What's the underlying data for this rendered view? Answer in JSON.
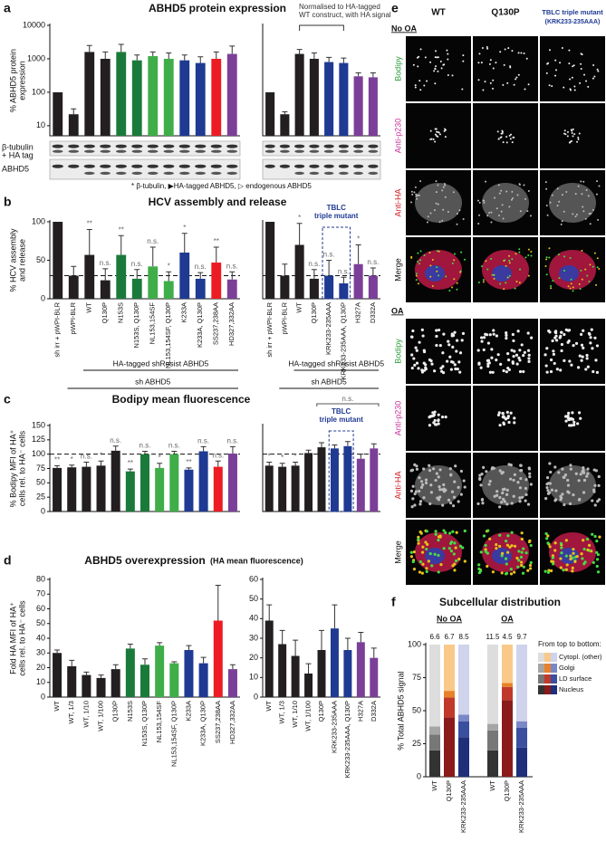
{
  "chart_data": [
    {
      "type": "bar",
      "panel_label": "a",
      "title": "ABHD5 protein expression",
      "ylabel": [
        "% ABHD5 protein",
        "expression"
      ],
      "log": true,
      "ylim": [
        5,
        10000
      ],
      "yticks": [
        10,
        100,
        1000,
        10000
      ],
      "values": [
        100,
        22,
        1600,
        1000,
        1600,
        900,
        1200,
        1000,
        900,
        750,
        1000,
        1400
      ],
      "errors": [
        null,
        10,
        900,
        600,
        1100,
        400,
        400,
        500,
        400,
        400,
        600,
        1000
      ],
      "colors": [
        "#231f20",
        "#231f20",
        "#231f20",
        "#231f20",
        "#1a7a3a",
        "#1a7a3a",
        "#3fae49",
        "#3fae49",
        "#1f3a93",
        "#1f3a93",
        "#ed1c24",
        "#7b3f98"
      ]
    },
    {
      "type": "bar",
      "note": [
        "Normalised to HA-tagged",
        "WT construct, with HA signal"
      ],
      "log": true,
      "ylim": [
        5,
        10000
      ],
      "values": [
        100,
        22,
        1400,
        1000,
        800,
        750,
        300,
        280
      ],
      "errors": [
        null,
        4,
        500,
        500,
        300,
        300,
        80,
        100
      ],
      "colors": [
        "#231f20",
        "#231f20",
        "#231f20",
        "#231f20",
        "#1f3a93",
        "#1f3a93",
        "#7b3f98",
        "#7b3f98"
      ]
    },
    {
      "type": "bar",
      "panel_label": "b",
      "title": "HCV assembly and release",
      "ylabel": [
        "% HCV assembly",
        "and release"
      ],
      "ylim": [
        0,
        100
      ],
      "yticks": [
        0,
        50,
        100
      ],
      "refline": 30,
      "categories": [
        "sh irr + pWPI-BLR",
        "pWPI-BLR",
        "WT",
        "Q130P",
        "N153S",
        "N153S, Q130P",
        "NL153,154SF",
        "NL153,154SF, Q130P",
        "K233A",
        "K233A, Q130P",
        "SS237,238AA",
        "HD327,332AA"
      ],
      "values": [
        100,
        30,
        57,
        24,
        57,
        26,
        42,
        23,
        60,
        26,
        47,
        25
      ],
      "errors": [
        null,
        12,
        33,
        15,
        25,
        12,
        25,
        12,
        25,
        8,
        20,
        10
      ],
      "annotations": [
        null,
        null,
        "**",
        "n.s.",
        "**",
        "n.s.",
        "n.s.",
        "*",
        "*",
        "n.s.",
        "**",
        "n.s."
      ],
      "colors": [
        "#231f20",
        "#231f20",
        "#231f20",
        "#231f20",
        "#1a7a3a",
        "#1a7a3a",
        "#3fae49",
        "#3fae49",
        "#1f3a93",
        "#1f3a93",
        "#ed1c24",
        "#7b3f98"
      ],
      "brackets": [
        "HA-tagged shResist ABHD5",
        "sh ABHD5"
      ]
    },
    {
      "type": "bar",
      "ylim": [
        0,
        100
      ],
      "refline": 30,
      "highlight": [
        "TBLC",
        "triple mutant"
      ],
      "categories": [
        "sh irr + pWPI-BLR",
        "pWPI-BLR",
        "WT",
        "Q130P",
        "KRK233-235AAA",
        "KRK233-235AAA, Q130P",
        "H327A",
        "D332A"
      ],
      "values": [
        100,
        30,
        70,
        26,
        30,
        20,
        45,
        30
      ],
      "errors": [
        null,
        15,
        28,
        12,
        20,
        8,
        25,
        10
      ],
      "annotations": [
        null,
        null,
        "*",
        "n.s.",
        "n.s.",
        "n.s.",
        "*",
        "n.s."
      ],
      "colors": [
        "#231f20",
        "#231f20",
        "#231f20",
        "#231f20",
        "#1f3a93",
        "#1f3a93",
        "#7b3f98",
        "#7b3f98"
      ],
      "brackets": [
        "HA-tagged shResist ABHD5",
        "sh ABHD5"
      ]
    },
    {
      "type": "bar",
      "panel_label": "c",
      "title": "Bodipy mean fluorescence",
      "ylabel": [
        "% Bodipy MFI of HA⁺",
        "cells rel. to HA⁻ cells"
      ],
      "ylim": [
        0,
        150
      ],
      "yticks": [
        0,
        25,
        50,
        75,
        100,
        125,
        150
      ],
      "refline": 100,
      "values": [
        76,
        77,
        78,
        80,
        106,
        70,
        100,
        76,
        100,
        73,
        105,
        78,
        101
      ],
      "errors": [
        4,
        4,
        8,
        8,
        8,
        4,
        5,
        8,
        5,
        3,
        8,
        10,
        12
      ],
      "annotations": [
        "**",
        "*",
        "n.s.",
        "*",
        "n.s.",
        "**",
        "n.s.",
        "*",
        "n.s.",
        "**",
        "n.s.",
        "n.s.",
        "n.s."
      ],
      "colors": [
        "#231f20",
        "#231f20",
        "#231f20",
        "#231f20",
        "#231f20",
        "#1a7a3a",
        "#1a7a3a",
        "#3fae49",
        "#3fae49",
        "#1f3a93",
        "#1f3a93",
        "#ed1c24",
        "#7b3f98"
      ]
    },
    {
      "type": "bar",
      "ylim": [
        0,
        150
      ],
      "refline": 100,
      "highlight": [
        "TBLC",
        "triple mutant"
      ],
      "bracket_label": "n.s.",
      "values": [
        80,
        78,
        80,
        102,
        112,
        110,
        114,
        92,
        110
      ],
      "errors": [
        6,
        6,
        6,
        5,
        8,
        6,
        8,
        8,
        8
      ],
      "annotations": [
        "*",
        "*",
        "*",
        null,
        null,
        null,
        null,
        null,
        null
      ],
      "colors": [
        "#231f20",
        "#231f20",
        "#231f20",
        "#231f20",
        "#231f20",
        "#1f3a93",
        "#1f3a93",
        "#7b3f98",
        "#7b3f98"
      ]
    },
    {
      "type": "bar",
      "panel_label": "d",
      "title": "ABHD5 overexpression",
      "subtitle": "(HA mean fluorescence)",
      "ylabel": [
        "Fold HA MFI of HA⁺",
        "cells rel. to HA⁻ cells"
      ],
      "ylim": [
        0,
        80
      ],
      "yticks": [
        0,
        10,
        20,
        30,
        40,
        50,
        60,
        70,
        80
      ],
      "categories": [
        "WT",
        "WT, 1/3",
        "WT, 1/10",
        "WT, 1/100",
        "Q130P",
        "N153S",
        "N153S, Q130P",
        "NL153,154SF",
        "NL153,154SF, Q130P",
        "K233A",
        "K233A, Q130P",
        "SS237,238AA",
        "HD327,332AA"
      ],
      "values": [
        30,
        21,
        15,
        13,
        19,
        33,
        22,
        35,
        23,
        32,
        23,
        52,
        19
      ],
      "errors": [
        2,
        4,
        2,
        2,
        3,
        3,
        4,
        2,
        1,
        3,
        4,
        24,
        3
      ],
      "colors": [
        "#231f20",
        "#231f20",
        "#231f20",
        "#231f20",
        "#231f20",
        "#1a7a3a",
        "#1a7a3a",
        "#3fae49",
        "#3fae49",
        "#1f3a93",
        "#1f3a93",
        "#ed1c24",
        "#7b3f98"
      ]
    },
    {
      "type": "bar",
      "ylim": [
        0,
        60
      ],
      "yticks": [
        0,
        10,
        20,
        30,
        40,
        50,
        60
      ],
      "categories": [
        "WT",
        "WT, 1/3",
        "WT, 1/10",
        "WT, 1/100",
        "Q130P",
        "KRK233-235AAA",
        "KRK233-235AAA, Q130P",
        "H327A",
        "D332A"
      ],
      "values": [
        39,
        27,
        21,
        12,
        24,
        35,
        24,
        28,
        20
      ],
      "errors": [
        8,
        7,
        8,
        5,
        10,
        12,
        6,
        5,
        5
      ],
      "colors": [
        "#231f20",
        "#231f20",
        "#231f20",
        "#231f20",
        "#231f20",
        "#1f3a93",
        "#1f3a93",
        "#7b3f98",
        "#7b3f98"
      ]
    },
    {
      "type": "stacked_bar",
      "panel_label": "f",
      "title": "Subcellular distribution",
      "ylabel": [
        "% Total ABHD5 signal"
      ],
      "ylim": [
        0,
        100
      ],
      "yticks": [
        0,
        25,
        50,
        75,
        100
      ],
      "groups": [
        "No OA",
        "OA"
      ],
      "categories": [
        "WT",
        "Q130P",
        "KRK233-235AAA",
        "WT",
        "Q130P",
        "KRK233-235AAA"
      ],
      "top_labels": [
        "6.6",
        "6.7",
        "8.5",
        "11.5",
        "4.5",
        "9.7"
      ],
      "legend_title": "From top to bottom:",
      "series": [
        {
          "name": "Nucleus",
          "values": [
            20,
            45,
            30,
            20,
            58,
            22
          ],
          "colors": [
            "#333333",
            "#8b1a1a",
            "#1f2f7a",
            "#333333",
            "#8b1a1a",
            "#1f2f7a"
          ]
        },
        {
          "name": "LD surface",
          "values": [
            12,
            15,
            12,
            15,
            10,
            15
          ],
          "colors": [
            "#777777",
            "#c0392b",
            "#3a4fa0",
            "#777777",
            "#c0392b",
            "#3a4fa0"
          ]
        },
        {
          "name": "Golgi",
          "values": [
            6,
            5,
            5,
            5,
            3,
            5
          ],
          "colors": [
            "#a5a5a5",
            "#e8822a",
            "#7b88c7",
            "#a5a5a5",
            "#e8822a",
            "#7b88c7"
          ]
        },
        {
          "name": "Cytopl. (other)",
          "values": [
            62,
            35,
            53,
            60,
            29,
            58
          ],
          "colors": [
            "#dddddd",
            "#f9c98a",
            "#cfd3ec",
            "#dddddd",
            "#f9c98a",
            "#cfd3ec"
          ]
        }
      ]
    }
  ],
  "blot": {
    "labels": [
      "β-tubulin",
      "+ HA tag",
      "ABHD5"
    ],
    "legend": "* β-tubulin, ▶HA-tagged ABHD5, ▷ endogenous ABHD5"
  },
  "microscopy": {
    "panel_label": "e",
    "columns": [
      "WT",
      "Q130P",
      "TBLC triple mutant"
    ],
    "column_note": "(KRK233-235AAA)",
    "groups": [
      {
        "name": "No OA",
        "rows": [
          "Bodipy",
          "Anti-p230",
          "Anti-HA",
          "Merge"
        ]
      },
      {
        "name": "OA",
        "rows": [
          "Bodipy",
          "Anti-p230",
          "Anti-HA",
          "Merge"
        ]
      }
    ]
  }
}
